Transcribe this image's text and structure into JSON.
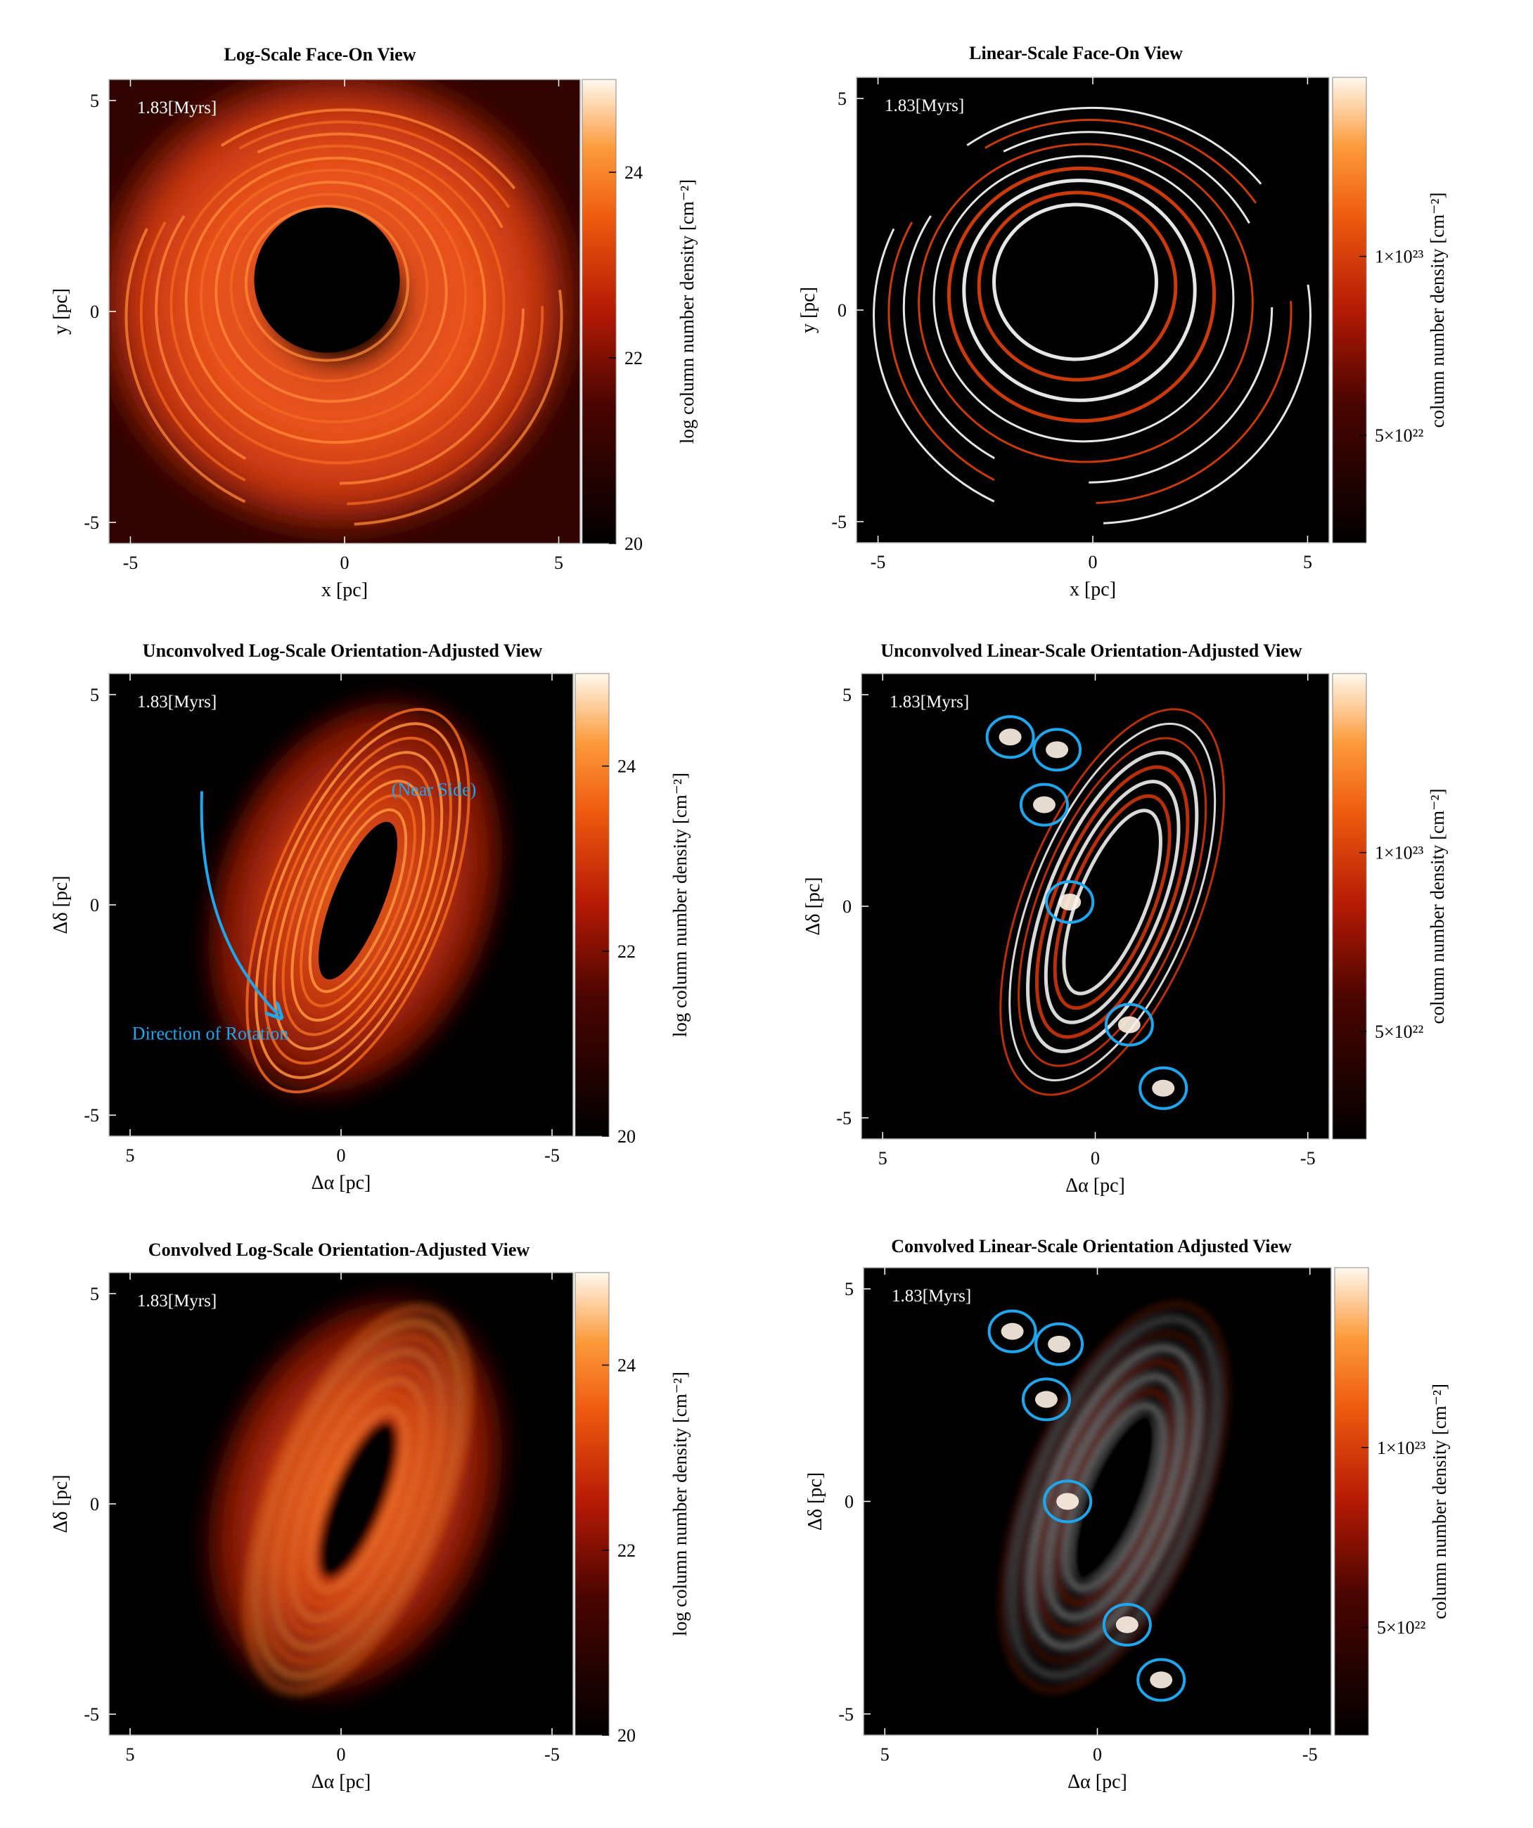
{
  "figure": {
    "panels": [
      {
        "id": "log-faceon",
        "title": "Log-Scale Face-On View",
        "scale": "log",
        "view": "faceon",
        "convolved": false,
        "time_label": "1.83[Myrs]",
        "xlabel": "x [pc]",
        "ylabel": "y [pc]",
        "xlim": [
          -5.5,
          5.5
        ],
        "ylim": [
          -5.5,
          5.5
        ],
        "xticks": [
          {
            "v": -5,
            "t": "-5"
          },
          {
            "v": 0,
            "t": "0"
          },
          {
            "v": 5,
            "t": "5"
          }
        ],
        "yticks": [
          {
            "v": 5,
            "t": "5"
          },
          {
            "v": 0,
            "t": "0"
          },
          {
            "v": -5,
            "t": "-5"
          }
        ],
        "colorbar": {
          "label": "log column number density [cm⁻²]",
          "range": [
            20,
            25
          ],
          "ticks": [
            {
              "v": 24,
              "t": "24"
            },
            {
              "v": 22,
              "t": "22"
            },
            {
              "v": 20,
              "t": "20"
            }
          ]
        },
        "annotations": []
      },
      {
        "id": "lin-faceon",
        "title": "Linear-Scale Face-On View",
        "scale": "linear",
        "view": "faceon",
        "convolved": false,
        "time_label": "1.83[Myrs]",
        "xlabel": "x [pc]",
        "ylabel": "y [pc]",
        "xlim": [
          -5.5,
          5.5
        ],
        "ylim": [
          -5.5,
          5.5
        ],
        "xticks": [
          {
            "v": -5,
            "t": "-5"
          },
          {
            "v": 0,
            "t": "0"
          },
          {
            "v": 5,
            "t": "5"
          }
        ],
        "yticks": [
          {
            "v": 5,
            "t": "5"
          },
          {
            "v": 0,
            "t": "0"
          },
          {
            "v": -5,
            "t": "-5"
          }
        ],
        "colorbar": {
          "label": "column number density [cm⁻²]",
          "range": [
            2e+22,
            1.5e+23
          ],
          "ticks": [
            {
              "v": 1e+23,
              "t": "1×10²³"
            },
            {
              "v": 5e+22,
              "t": "5×10²²"
            }
          ]
        },
        "annotations": []
      },
      {
        "id": "log-oriented",
        "title": "Unconvolved Log-Scale Orientation-Adjusted View",
        "scale": "log",
        "view": "oriented",
        "convolved": false,
        "time_label": "1.83[Myrs]",
        "xlabel": "Δα [pc]",
        "ylabel": "Δδ [pc]",
        "xlim": [
          5.5,
          -5.5
        ],
        "ylim": [
          -5.5,
          5.5
        ],
        "xticks": [
          {
            "v": 5,
            "t": "5"
          },
          {
            "v": 0,
            "t": "0"
          },
          {
            "v": -5,
            "t": "-5"
          }
        ],
        "yticks": [
          {
            "v": 5,
            "t": "5"
          },
          {
            "v": 0,
            "t": "0"
          },
          {
            "v": -5,
            "t": "-5"
          }
        ],
        "colorbar": {
          "label": "log column number density [cm⁻²]",
          "range": [
            20,
            25
          ],
          "ticks": [
            {
              "v": 24,
              "t": "24"
            },
            {
              "v": 22,
              "t": "22"
            },
            {
              "v": 20,
              "t": "20"
            }
          ]
        },
        "annotations": [
          {
            "text": "(Near Side)",
            "x": -2.2,
            "y": 2.6
          },
          {
            "text": "Direction of Rotation",
            "x": 3.1,
            "y": -3.2
          }
        ]
      },
      {
        "id": "lin-oriented",
        "title": "Unconvolved Linear-Scale Orientation-Adjusted View",
        "scale": "linear",
        "view": "oriented",
        "convolved": false,
        "time_label": "1.83[Myrs]",
        "xlabel": "Δα [pc]",
        "ylabel": "Δδ [pc]",
        "xlim": [
          5.5,
          -5.5
        ],
        "ylim": [
          -5.5,
          5.5
        ],
        "xticks": [
          {
            "v": 5,
            "t": "5"
          },
          {
            "v": 0,
            "t": "0"
          },
          {
            "v": -5,
            "t": "-5"
          }
        ],
        "yticks": [
          {
            "v": 5,
            "t": "5"
          },
          {
            "v": 0,
            "t": "0"
          },
          {
            "v": -5,
            "t": "-5"
          }
        ],
        "colorbar": {
          "label": "column number density [cm⁻²]",
          "range": [
            2e+22,
            1.5e+23
          ],
          "ticks": [
            {
              "v": 1e+23,
              "t": "1×10²³"
            },
            {
              "v": 5e+22,
              "t": "5×10²²"
            }
          ]
        },
        "annotations": []
      },
      {
        "id": "log-convolved",
        "title": "Convolved Log-Scale Orientation-Adjusted View",
        "scale": "log",
        "view": "oriented",
        "convolved": true,
        "time_label": "1.83[Myrs]",
        "xlabel": "Δα [pc]",
        "ylabel": "Δδ [pc]",
        "xlim": [
          5.5,
          -5.5
        ],
        "ylim": [
          -5.5,
          5.5
        ],
        "xticks": [
          {
            "v": 5,
            "t": "5"
          },
          {
            "v": 0,
            "t": "0"
          },
          {
            "v": -5,
            "t": "-5"
          }
        ],
        "yticks": [
          {
            "v": 5,
            "t": "5"
          },
          {
            "v": 0,
            "t": "0"
          },
          {
            "v": -5,
            "t": "-5"
          }
        ],
        "colorbar": {
          "label": "log column number density [cm⁻²]",
          "range": [
            20,
            25
          ],
          "ticks": [
            {
              "v": 24,
              "t": "24"
            },
            {
              "v": 22,
              "t": "22"
            },
            {
              "v": 20,
              "t": "20"
            }
          ]
        },
        "annotations": []
      },
      {
        "id": "lin-convolved",
        "title": "Convolved Linear-Scale Orientation Adjusted View",
        "scale": "linear",
        "view": "oriented",
        "convolved": true,
        "time_label": "1.83[Myrs]",
        "xlabel": "Δα [pc]",
        "ylabel": "Δδ [pc]",
        "xlim": [
          5.5,
          -5.5
        ],
        "ylim": [
          -5.5,
          5.5
        ],
        "xticks": [
          {
            "v": 5,
            "t": "5"
          },
          {
            "v": 0,
            "t": "0"
          },
          {
            "v": -5,
            "t": "-5"
          }
        ],
        "yticks": [
          {
            "v": 5,
            "t": "5"
          },
          {
            "v": 0,
            "t": "0"
          },
          {
            "v": -5,
            "t": "-5"
          }
        ],
        "colorbar": {
          "label": "column number density [cm⁻²]",
          "range": [
            2e+22,
            1.5e+23
          ],
          "ticks": [
            {
              "v": 1e+23,
              "t": "1×10²³"
            },
            {
              "v": 5e+22,
              "t": "5×10²²"
            }
          ]
        },
        "annotations": []
      }
    ]
  },
  "chart_data": [
    {
      "type": "heatmap",
      "title": "Log-Scale Face-On View",
      "xlabel": "x [pc]",
      "ylabel": "y [pc]",
      "xlim": [
        -5.5,
        5.5
      ],
      "ylim": [
        -5.5,
        5.5
      ],
      "colorbar_label": "log column number density [cm⁻²]",
      "colorbar_range": [
        20,
        25
      ],
      "colorbar_ticks": [
        24,
        22,
        20
      ],
      "time": "1.83[Myrs]"
    },
    {
      "type": "heatmap",
      "title": "Linear-Scale Face-On View",
      "xlabel": "x [pc]",
      "ylabel": "y [pc]",
      "xlim": [
        -5.5,
        5.5
      ],
      "ylim": [
        -5.5,
        5.5
      ],
      "colorbar_label": "column number density [cm⁻²]",
      "colorbar_ticks": [
        1e+23,
        5e+22
      ],
      "time": "1.83[Myrs]"
    },
    {
      "type": "heatmap",
      "title": "Unconvolved Log-Scale Orientation-Adjusted View",
      "xlabel": "Δα [pc]",
      "ylabel": "Δδ [pc]",
      "xlim": [
        5.5,
        -5.5
      ],
      "ylim": [
        -5.5,
        5.5
      ],
      "colorbar_label": "log column number density [cm⁻²]",
      "colorbar_range": [
        20,
        25
      ],
      "colorbar_ticks": [
        24,
        22,
        20
      ],
      "time": "1.83[Myrs]",
      "annotations": [
        "(Near Side)",
        "Direction of Rotation"
      ]
    },
    {
      "type": "heatmap",
      "title": "Unconvolved Linear-Scale Orientation-Adjusted View",
      "xlabel": "Δα [pc]",
      "ylabel": "Δδ [pc]",
      "xlim": [
        5.5,
        -5.5
      ],
      "ylim": [
        -5.5,
        5.5
      ],
      "colorbar_label": "column number density [cm⁻²]",
      "colorbar_ticks": [
        1e+23,
        5e+22
      ],
      "time": "1.83[Myrs]",
      "markers": [
        {
          "x": 2.0,
          "y": 4.0
        },
        {
          "x": 0.9,
          "y": 3.7
        },
        {
          "x": 1.2,
          "y": 2.4
        },
        {
          "x": 0.6,
          "y": 0.1
        },
        {
          "x": -0.8,
          "y": -2.8
        },
        {
          "x": -1.6,
          "y": -4.3
        }
      ]
    },
    {
      "type": "heatmap",
      "title": "Convolved Log-Scale Orientation-Adjusted View",
      "xlabel": "Δα [pc]",
      "ylabel": "Δδ [pc]",
      "xlim": [
        5.5,
        -5.5
      ],
      "ylim": [
        -5.5,
        5.5
      ],
      "colorbar_label": "log column number density [cm⁻²]",
      "colorbar_range": [
        20,
        25
      ],
      "colorbar_ticks": [
        24,
        22,
        20
      ],
      "time": "1.83[Myrs]"
    },
    {
      "type": "heatmap",
      "title": "Convolved Linear-Scale Orientation Adjusted View",
      "xlabel": "Δα [pc]",
      "ylabel": "Δδ [pc]",
      "xlim": [
        5.5,
        -5.5
      ],
      "ylim": [
        -5.5,
        5.5
      ],
      "colorbar_label": "column number density [cm⁻²]",
      "colorbar_ticks": [
        1e+23,
        5e+22
      ],
      "time": "1.83[Myrs]",
      "markers": [
        {
          "x": 2.0,
          "y": 4.0
        },
        {
          "x": 0.9,
          "y": 3.7
        },
        {
          "x": 1.2,
          "y": 2.4
        },
        {
          "x": 0.7,
          "y": 0.0
        },
        {
          "x": -0.7,
          "y": -2.9
        },
        {
          "x": -1.5,
          "y": -4.2
        }
      ]
    }
  ]
}
